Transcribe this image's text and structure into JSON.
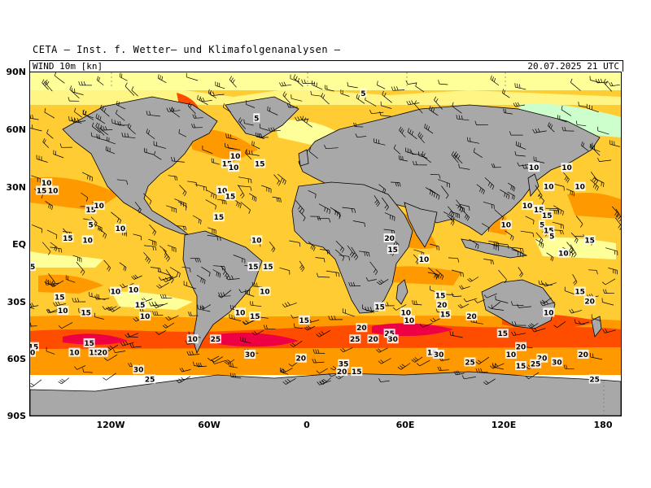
{
  "header": {
    "title": "CETA — Inst. f. Wetter— und Klimafolgenanalysen —",
    "field_label": "WIND 10m [kn]",
    "valid_time": "20.07.2025 21 UTC"
  },
  "axes": {
    "y_labels": [
      "90N",
      "60N",
      "30N",
      "EQ",
      "30S",
      "60S",
      "90S"
    ],
    "x_labels": [
      "120W",
      "60W",
      "0",
      "60E",
      "120E",
      "180"
    ]
  },
  "colors": {
    "land": "#a8a8a8",
    "calm": "#ffffff",
    "light": "#ccffcc",
    "moderate": "#ffff99",
    "fresh": "#ffcc33",
    "strong": "#ff9900",
    "gale": "#ff4d00",
    "storm": "#ee0044"
  },
  "map_labels": [
    {
      "lon": -150,
      "lat": 32,
      "text": "10"
    },
    {
      "lon": -153,
      "lat": 28,
      "text": "15"
    },
    {
      "lon": -146,
      "lat": 28,
      "text": "10"
    },
    {
      "lon": -123,
      "lat": 18,
      "text": "15"
    },
    {
      "lon": -118,
      "lat": 20,
      "text": "10"
    },
    {
      "lon": -123,
      "lat": 10,
      "text": "5"
    },
    {
      "lon": -105,
      "lat": 8,
      "text": "10"
    },
    {
      "lon": -137,
      "lat": 3,
      "text": "15"
    },
    {
      "lon": -125,
      "lat": 2,
      "text": "10"
    },
    {
      "lon": -160,
      "lat": -12,
      "text": "15"
    },
    {
      "lon": -142,
      "lat": -28,
      "text": "15"
    },
    {
      "lon": -140,
      "lat": -35,
      "text": "10"
    },
    {
      "lon": -126,
      "lat": -36,
      "text": "15"
    },
    {
      "lon": -108,
      "lat": -25,
      "text": "10"
    },
    {
      "lon": -97,
      "lat": -24,
      "text": "10"
    },
    {
      "lon": -93,
      "lat": -32,
      "text": "15"
    },
    {
      "lon": -90,
      "lat": -38,
      "text": "10"
    },
    {
      "lon": -158,
      "lat": -54,
      "text": "15"
    },
    {
      "lon": -160,
      "lat": -57,
      "text": "20"
    },
    {
      "lon": -133,
      "lat": -57,
      "text": "10"
    },
    {
      "lon": -124,
      "lat": -52,
      "text": "15"
    },
    {
      "lon": -121,
      "lat": -57,
      "text": "15"
    },
    {
      "lon": -116,
      "lat": -57,
      "text": "20"
    },
    {
      "lon": -94,
      "lat": -66,
      "text": "30"
    },
    {
      "lon": -87,
      "lat": -71,
      "text": "25"
    },
    {
      "lon": -61,
      "lat": -50,
      "text": "10"
    },
    {
      "lon": -47,
      "lat": -50,
      "text": "25"
    },
    {
      "lon": -26,
      "lat": -58,
      "text": "30"
    },
    {
      "lon": -32,
      "lat": -36,
      "text": "10"
    },
    {
      "lon": -23,
      "lat": -38,
      "text": "15"
    },
    {
      "lon": -22,
      "lat": 2,
      "text": "10"
    },
    {
      "lon": -24,
      "lat": -12,
      "text": "15"
    },
    {
      "lon": -15,
      "lat": -12,
      "text": "15"
    },
    {
      "lon": -17,
      "lat": -25,
      "text": "10"
    },
    {
      "lon": 7,
      "lat": -40,
      "text": "15"
    },
    {
      "lon": 5,
      "lat": -60,
      "text": "20"
    },
    {
      "lon": 31,
      "lat": -63,
      "text": "35"
    },
    {
      "lon": 30,
      "lat": -67,
      "text": "20"
    },
    {
      "lon": 39,
      "lat": -67,
      "text": "15"
    },
    {
      "lon": 42,
      "lat": -44,
      "text": "20"
    },
    {
      "lon": 38,
      "lat": -50,
      "text": "25"
    },
    {
      "lon": 49,
      "lat": -50,
      "text": "20"
    },
    {
      "lon": 59,
      "lat": -47,
      "text": "25"
    },
    {
      "lon": 61,
      "lat": -50,
      "text": "30"
    },
    {
      "lon": 53,
      "lat": -33,
      "text": "15"
    },
    {
      "lon": 59,
      "lat": 3,
      "text": "20"
    },
    {
      "lon": 61,
      "lat": -3,
      "text": "15"
    },
    {
      "lon": 80,
      "lat": -8,
      "text": "10"
    },
    {
      "lon": 69,
      "lat": -36,
      "text": "10"
    },
    {
      "lon": 71,
      "lat": -40,
      "text": "10"
    },
    {
      "lon": 90,
      "lat": -27,
      "text": "15"
    },
    {
      "lon": 91,
      "lat": -32,
      "text": "20"
    },
    {
      "lon": 93,
      "lat": -37,
      "text": "15"
    },
    {
      "lon": 109,
      "lat": -38,
      "text": "20"
    },
    {
      "lon": 128,
      "lat": -47,
      "text": "15"
    },
    {
      "lon": 139,
      "lat": -54,
      "text": "20"
    },
    {
      "lon": 133,
      "lat": -58,
      "text": "10"
    },
    {
      "lon": 152,
      "lat": -60,
      "text": "20"
    },
    {
      "lon": 148,
      "lat": -63,
      "text": "25"
    },
    {
      "lon": 161,
      "lat": -62,
      "text": "30"
    },
    {
      "lon": 177,
      "lat": -58,
      "text": "20"
    },
    {
      "lon": 184,
      "lat": -71,
      "text": "25"
    },
    {
      "lon": 85,
      "lat": -57,
      "text": "15"
    },
    {
      "lon": 89,
      "lat": -58,
      "text": "30"
    },
    {
      "lon": 108,
      "lat": -62,
      "text": "25"
    },
    {
      "lon": 139,
      "lat": -64,
      "text": "15"
    },
    {
      "lon": 175,
      "lat": -25,
      "text": "15"
    },
    {
      "lon": 181,
      "lat": -30,
      "text": "20"
    },
    {
      "lon": 156,
      "lat": -36,
      "text": "10"
    },
    {
      "lon": 165,
      "lat": -5,
      "text": "10"
    },
    {
      "lon": 181,
      "lat": 2,
      "text": "15"
    },
    {
      "lon": 143,
      "lat": 20,
      "text": "10"
    },
    {
      "lon": 150,
      "lat": 18,
      "text": "15"
    },
    {
      "lon": 155,
      "lat": 15,
      "text": "15"
    },
    {
      "lon": 130,
      "lat": 10,
      "text": "10"
    },
    {
      "lon": 152,
      "lat": 10,
      "text": "5"
    },
    {
      "lon": 156,
      "lat": 7,
      "text": "15"
    },
    {
      "lon": 158,
      "lat": 4,
      "text": "5"
    },
    {
      "lon": 147,
      "lat": 40,
      "text": "10"
    },
    {
      "lon": 167,
      "lat": 40,
      "text": "10"
    },
    {
      "lon": 156,
      "lat": 30,
      "text": "10"
    },
    {
      "lon": 175,
      "lat": 30,
      "text": "10"
    },
    {
      "lon": -35,
      "lat": 46,
      "text": "10"
    },
    {
      "lon": -40,
      "lat": 42,
      "text": "15"
    },
    {
      "lon": -36,
      "lat": 40,
      "text": "10"
    },
    {
      "lon": -20,
      "lat": 42,
      "text": "15"
    },
    {
      "lon": -43,
      "lat": 28,
      "text": "10"
    },
    {
      "lon": -38,
      "lat": 25,
      "text": "15"
    },
    {
      "lon": -45,
      "lat": 14,
      "text": "15"
    },
    {
      "lon": -22,
      "lat": 66,
      "text": "5"
    },
    {
      "lon": 43,
      "lat": 79,
      "text": "5"
    }
  ]
}
